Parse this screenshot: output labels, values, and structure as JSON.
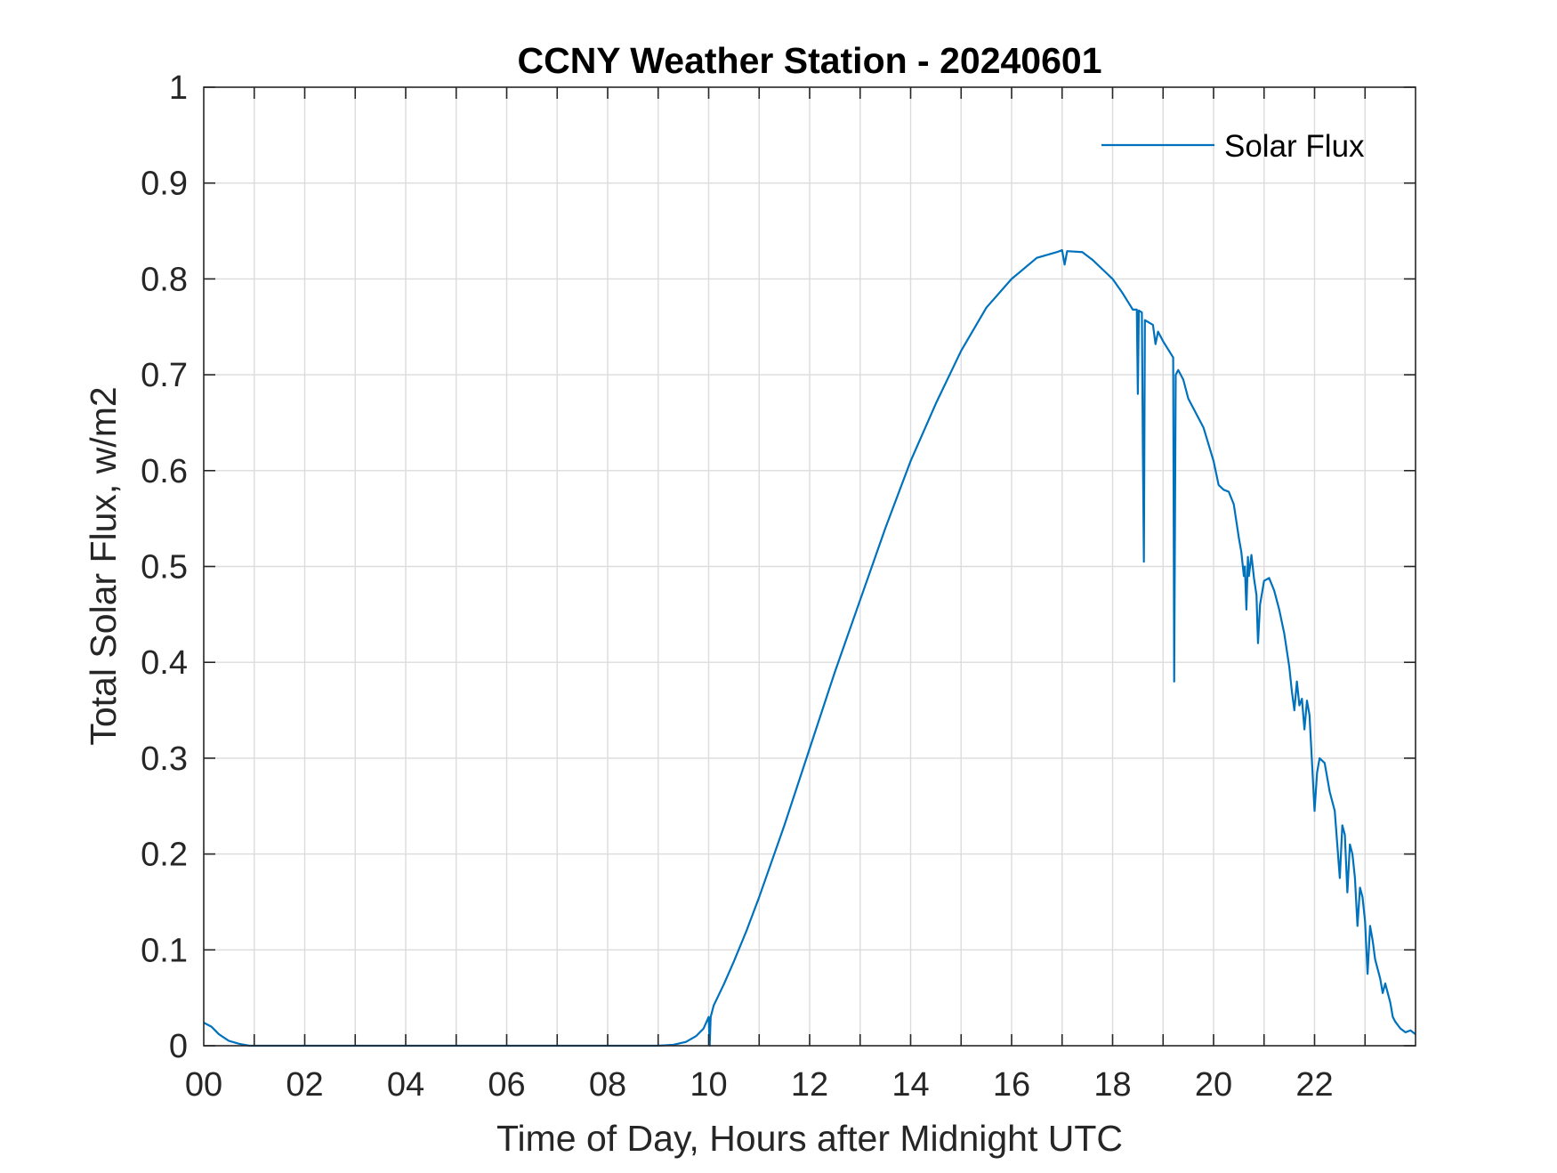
{
  "colors": {
    "series": "#0072BD",
    "grid": "#dcdcdc",
    "axis": "#262626",
    "background": "#ffffff"
  },
  "chart_data": {
    "type": "line",
    "title": "CCNY Weather Station - 20240601",
    "xlabel": "Time of Day, Hours after Midnight UTC",
    "ylabel": "Total Solar Flux, w/m2",
    "xlim": [
      0,
      24
    ],
    "ylim": [
      0,
      1
    ],
    "x_ticks": [
      0,
      2,
      4,
      6,
      8,
      10,
      12,
      14,
      16,
      18,
      20,
      22
    ],
    "x_tick_labels": [
      "00",
      "02",
      "04",
      "06",
      "08",
      "10",
      "12",
      "14",
      "16",
      "18",
      "20",
      "22"
    ],
    "y_ticks": [
      0,
      0.1,
      0.2,
      0.3,
      0.4,
      0.5,
      0.6,
      0.7,
      0.8,
      0.9,
      1
    ],
    "y_tick_labels": [
      "0",
      "0.1",
      "0.2",
      "0.3",
      "0.4",
      "0.5",
      "0.6",
      "0.7",
      "0.8",
      "0.9",
      "1"
    ],
    "x_minor_grid_step": 1,
    "grid": true,
    "legend_position": "top-right",
    "series": [
      {
        "name": "Solar Flux",
        "points": [
          [
            0.0,
            0.024
          ],
          [
            0.15,
            0.02
          ],
          [
            0.3,
            0.012
          ],
          [
            0.5,
            0.005
          ],
          [
            0.7,
            0.002
          ],
          [
            0.9,
            0.0
          ],
          [
            2.0,
            0.0
          ],
          [
            4.0,
            0.0
          ],
          [
            6.0,
            0.0
          ],
          [
            8.0,
            0.0
          ],
          [
            9.0,
            0.0
          ],
          [
            9.3,
            0.001
          ],
          [
            9.55,
            0.004
          ],
          [
            9.75,
            0.01
          ],
          [
            9.9,
            0.018
          ],
          [
            10.0,
            0.03
          ],
          [
            10.02,
            0.0
          ],
          [
            10.04,
            0.03
          ],
          [
            10.1,
            0.042
          ],
          [
            10.3,
            0.064
          ],
          [
            10.5,
            0.088
          ],
          [
            10.75,
            0.12
          ],
          [
            11.0,
            0.155
          ],
          [
            11.5,
            0.23
          ],
          [
            12.0,
            0.31
          ],
          [
            12.5,
            0.39
          ],
          [
            13.0,
            0.465
          ],
          [
            13.5,
            0.54
          ],
          [
            14.0,
            0.61
          ],
          [
            14.5,
            0.67
          ],
          [
            15.0,
            0.725
          ],
          [
            15.5,
            0.77
          ],
          [
            16.0,
            0.8
          ],
          [
            16.5,
            0.822
          ],
          [
            16.9,
            0.828
          ],
          [
            17.0,
            0.83
          ],
          [
            17.05,
            0.815
          ],
          [
            17.1,
            0.829
          ],
          [
            17.4,
            0.828
          ],
          [
            17.6,
            0.82
          ],
          [
            17.8,
            0.81
          ],
          [
            18.0,
            0.8
          ],
          [
            18.2,
            0.785
          ],
          [
            18.4,
            0.768
          ],
          [
            18.48,
            0.768
          ],
          [
            18.5,
            0.68
          ],
          [
            18.52,
            0.767
          ],
          [
            18.58,
            0.765
          ],
          [
            18.6,
            0.62
          ],
          [
            18.62,
            0.505
          ],
          [
            18.64,
            0.757
          ],
          [
            18.8,
            0.752
          ],
          [
            18.85,
            0.732
          ],
          [
            18.9,
            0.745
          ],
          [
            19.0,
            0.735
          ],
          [
            19.2,
            0.718
          ],
          [
            19.22,
            0.38
          ],
          [
            19.25,
            0.7
          ],
          [
            19.3,
            0.705
          ],
          [
            19.4,
            0.695
          ],
          [
            19.5,
            0.675
          ],
          [
            19.6,
            0.665
          ],
          [
            19.8,
            0.645
          ],
          [
            20.0,
            0.61
          ],
          [
            20.1,
            0.585
          ],
          [
            20.2,
            0.58
          ],
          [
            20.3,
            0.578
          ],
          [
            20.4,
            0.565
          ],
          [
            20.5,
            0.53
          ],
          [
            20.55,
            0.515
          ],
          [
            20.6,
            0.49
          ],
          [
            20.62,
            0.5
          ],
          [
            20.65,
            0.455
          ],
          [
            20.68,
            0.51
          ],
          [
            20.7,
            0.49
          ],
          [
            20.75,
            0.512
          ],
          [
            20.8,
            0.488
          ],
          [
            20.85,
            0.47
          ],
          [
            20.88,
            0.42
          ],
          [
            20.92,
            0.46
          ],
          [
            21.0,
            0.485
          ],
          [
            21.1,
            0.488
          ],
          [
            21.2,
            0.475
          ],
          [
            21.3,
            0.455
          ],
          [
            21.4,
            0.43
          ],
          [
            21.5,
            0.395
          ],
          [
            21.55,
            0.37
          ],
          [
            21.6,
            0.35
          ],
          [
            21.65,
            0.38
          ],
          [
            21.7,
            0.355
          ],
          [
            21.75,
            0.362
          ],
          [
            21.8,
            0.33
          ],
          [
            21.85,
            0.36
          ],
          [
            21.9,
            0.345
          ],
          [
            21.95,
            0.295
          ],
          [
            22.0,
            0.245
          ],
          [
            22.05,
            0.285
          ],
          [
            22.1,
            0.3
          ],
          [
            22.2,
            0.295
          ],
          [
            22.3,
            0.265
          ],
          [
            22.4,
            0.245
          ],
          [
            22.45,
            0.21
          ],
          [
            22.5,
            0.175
          ],
          [
            22.55,
            0.23
          ],
          [
            22.6,
            0.22
          ],
          [
            22.65,
            0.16
          ],
          [
            22.7,
            0.21
          ],
          [
            22.75,
            0.2
          ],
          [
            22.8,
            0.175
          ],
          [
            22.85,
            0.125
          ],
          [
            22.9,
            0.165
          ],
          [
            22.95,
            0.155
          ],
          [
            23.0,
            0.13
          ],
          [
            23.05,
            0.075
          ],
          [
            23.1,
            0.125
          ],
          [
            23.15,
            0.11
          ],
          [
            23.2,
            0.09
          ],
          [
            23.3,
            0.07
          ],
          [
            23.35,
            0.055
          ],
          [
            23.4,
            0.065
          ],
          [
            23.5,
            0.045
          ],
          [
            23.55,
            0.03
          ],
          [
            23.6,
            0.025
          ],
          [
            23.7,
            0.018
          ],
          [
            23.8,
            0.014
          ],
          [
            23.9,
            0.016
          ],
          [
            24.0,
            0.012
          ]
        ]
      }
    ]
  }
}
